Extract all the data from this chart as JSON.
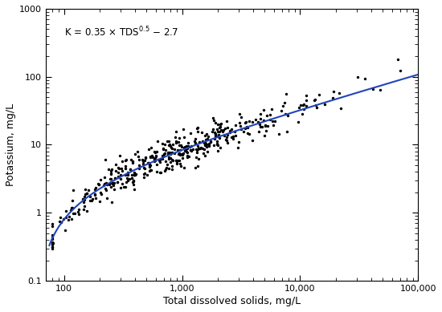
{
  "xlabel": "Total dissolved solids, mg/L",
  "ylabel": "Potassium, mg/L",
  "xlim": [
    70,
    100000
  ],
  "ylim": [
    0.1,
    1000
  ],
  "curve_color": "#2244bb",
  "dot_color": "black",
  "dot_size": 6,
  "dot_alpha": 1.0,
  "curve_a": 0.35,
  "curve_b": 0.5,
  "curve_c": -2.7,
  "background_color": "white",
  "seed": 42,
  "n_points": 420,
  "tds_log_mean": 2.85,
  "tds_log_std": 0.55,
  "k_scatter_log_std": 0.28
}
